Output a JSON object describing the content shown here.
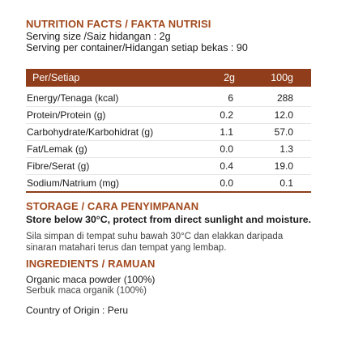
{
  "nutrition": {
    "title": "NUTRITION FACTS / FAKTA NUTRISI",
    "serving_size": "Serving size /Saiz hidangan : 2g",
    "serving_per_container": "Serving per container/Hidangan setiap bekas : 90",
    "columns": [
      "Per/Setiap",
      "2g",
      "100g"
    ],
    "rows": [
      {
        "name": "Energy/Tenaga (kcal)",
        "per_serving": "6",
        "per_100g": "288"
      },
      {
        "name": "Protein/Protein (g)",
        "per_serving": "0.2",
        "per_100g": "12.0"
      },
      {
        "name": "Carbohydrate/Karbohidrat (g)",
        "per_serving": "1.1",
        "per_100g": "57.0"
      },
      {
        "name": "Fat/Lemak (g)",
        "per_serving": "0.0",
        "per_100g": "1.3"
      },
      {
        "name": "Fibre/Serat (g)",
        "per_serving": "0.4",
        "per_100g": "19.0"
      },
      {
        "name": "Sodium/Natrium (mg)",
        "per_serving": "0.0",
        "per_100g": "0.1"
      }
    ]
  },
  "storage": {
    "title": "STORAGE / CARA PENYIMPANAN",
    "english": "Store below 30°C, protect from direct sunlight and moisture.",
    "malay_line1": "Sila simpan di tempat suhu bawah 30°C dan elakkan daripada",
    "malay_line2": "sinaran matahari terus dan tempat yang lembap."
  },
  "ingredients": {
    "title": "INGREDIENTS / RAMUAN",
    "english": "Organic maca powder (100%)",
    "malay": "Serbuk maca organik (100%)"
  },
  "origin": "Country of Origin : Peru",
  "colors": {
    "accent": "#a34a1e",
    "table_header": "#8f3d1a"
  }
}
